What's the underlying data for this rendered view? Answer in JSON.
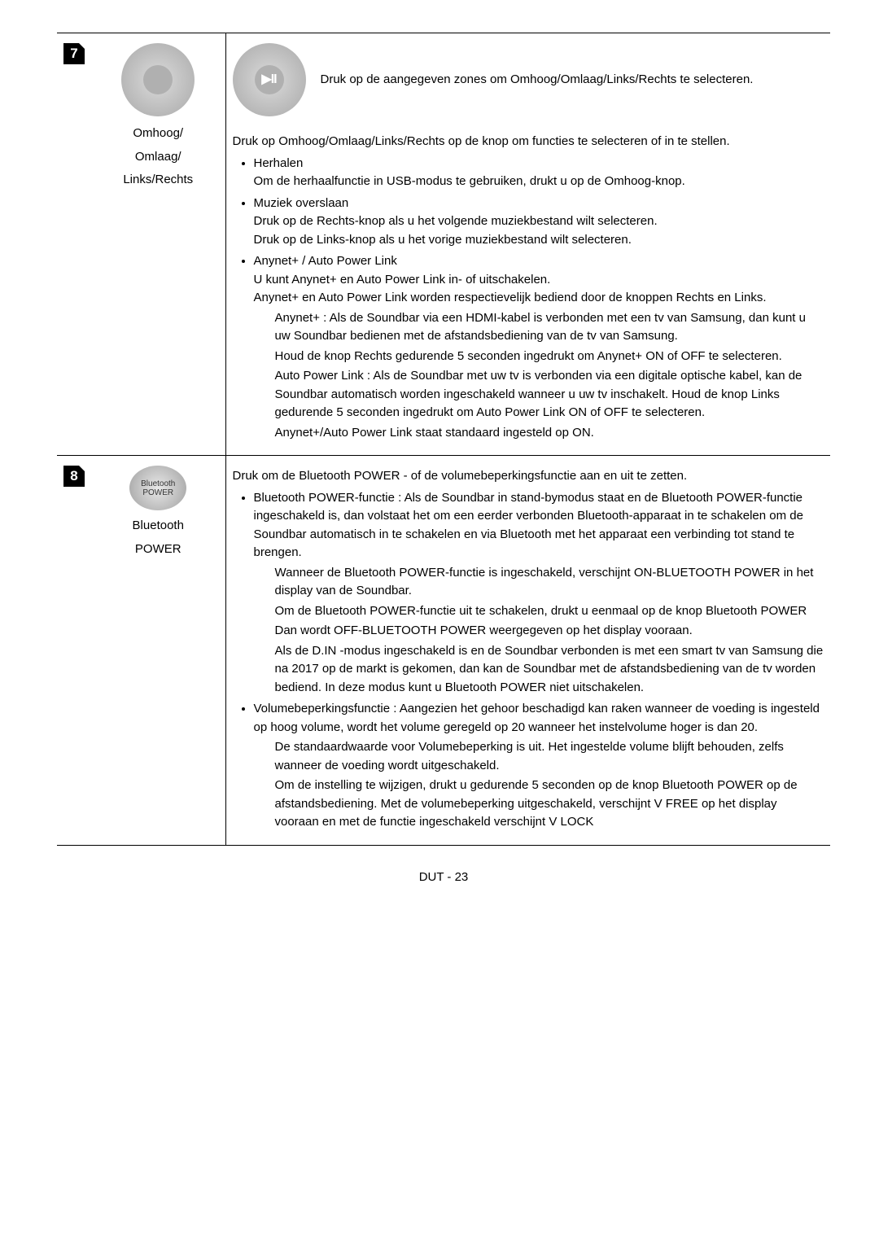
{
  "row7": {
    "num": "7",
    "icon_label_1": "Omhoog/",
    "icon_label_2": "Omlaag/",
    "icon_label_3": "Links/Rechts",
    "intro": "Druk op de aangegeven zones om Omhoog/Omlaag/Links/Rechts te selecteren.",
    "para1": "Druk op Omhoog/Omlaag/Links/Rechts op de knop om functies te selecteren of in te stellen.",
    "b1_title": "Herhalen",
    "b1_text": "Om de herhaalfunctie in USB-modus te gebruiken, drukt u op de Omhoog-knop.",
    "b2_title": "Muziek overslaan",
    "b2_l1": "Druk op de Rechts-knop als u het volgende muziekbestand wilt selecteren.",
    "b2_l2": "Druk op de Links-knop als u het vorige muziekbestand wilt selecteren.",
    "b3_title": "Anynet+ / Auto Power Link",
    "b3_l1": "U kunt Anynet+ en Auto Power Link in- of uitschakelen.",
    "b3_l2": "Anynet+ en Auto Power Link worden respectievelijk bediend door de knoppen Rechts en Links.",
    "b3_s1": "Anynet+ : Als de Soundbar via een HDMI-kabel is verbonden met een tv van Samsung, dan kunt u uw Soundbar bedienen met de afstandsbediening van de tv van Samsung.",
    "b3_s2": "Houd de knop Rechts gedurende 5 seconden ingedrukt om Anynet+ ON of OFF te selecteren.",
    "b3_s3": "Auto Power Link : Als de Soundbar met uw tv is verbonden via een digitale optische kabel, kan de Soundbar automatisch worden ingeschakeld wanneer u uw tv inschakelt. Houd de knop Links gedurende 5 seconden ingedrukt om Auto Power Link ON of OFF te selecteren.",
    "b3_s4": "Anynet+/Auto Power Link staat standaard ingesteld op ON."
  },
  "row8": {
    "num": "8",
    "bt_text1": "Bluetooth",
    "bt_text2": "POWER",
    "icon_label_1": "Bluetooth",
    "icon_label_2": "POWER",
    "para1": "Druk om de Bluetooth POWER - of de volumebeperkingsfunctie aan en uit te zetten.",
    "b1_title": "Bluetooth POWER-functie : Als de Soundbar in stand-bymodus staat en de Bluetooth POWER-functie ingeschakeld is, dan volstaat het om een eerder verbonden Bluetooth-apparaat in te schakelen om de Soundbar automatisch in te schakelen en via Bluetooth met het apparaat een verbinding tot stand te brengen.",
    "b1_s1": "Wanneer de Bluetooth POWER-functie is ingeschakeld, verschijnt ON-BLUETOOTH POWER in het display van de Soundbar.",
    "b1_s2": "Om de Bluetooth POWER-functie uit te schakelen, drukt u eenmaal op de knop Bluetooth POWER",
    "b1_s3": "Dan wordt OFF-BLUETOOTH POWER weergegeven op het display vooraan.",
    "b1_s4": "Als de D.IN -modus ingeschakeld is en de Soundbar verbonden is met een smart tv van Samsung die na 2017 op de markt is gekomen, dan kan de Soundbar met de afstandsbediening van de tv worden bediend. In deze modus kunt u Bluetooth POWER niet uitschakelen.",
    "b2_title": "Volumebeperkingsfunctie : Aangezien het gehoor beschadigd kan raken wanneer de voeding is ingesteld op hoog volume, wordt het volume geregeld op 20 wanneer het instelvolume hoger is dan 20.",
    "b2_s1": "De standaardwaarde voor Volumebeperking is uit. Het ingestelde volume blijft behouden, zelfs wanneer de voeding wordt uitgeschakeld.",
    "b2_s2": "Om de instelling te wijzigen, drukt u gedurende 5 seconden op de knop Bluetooth POWER op de afstandsbediening. Met de volumebeperking uitgeschakeld, verschijnt V FREE op het display vooraan en met de functie ingeschakeld verschijnt V LOCK"
  },
  "footer": "DUT - 23"
}
